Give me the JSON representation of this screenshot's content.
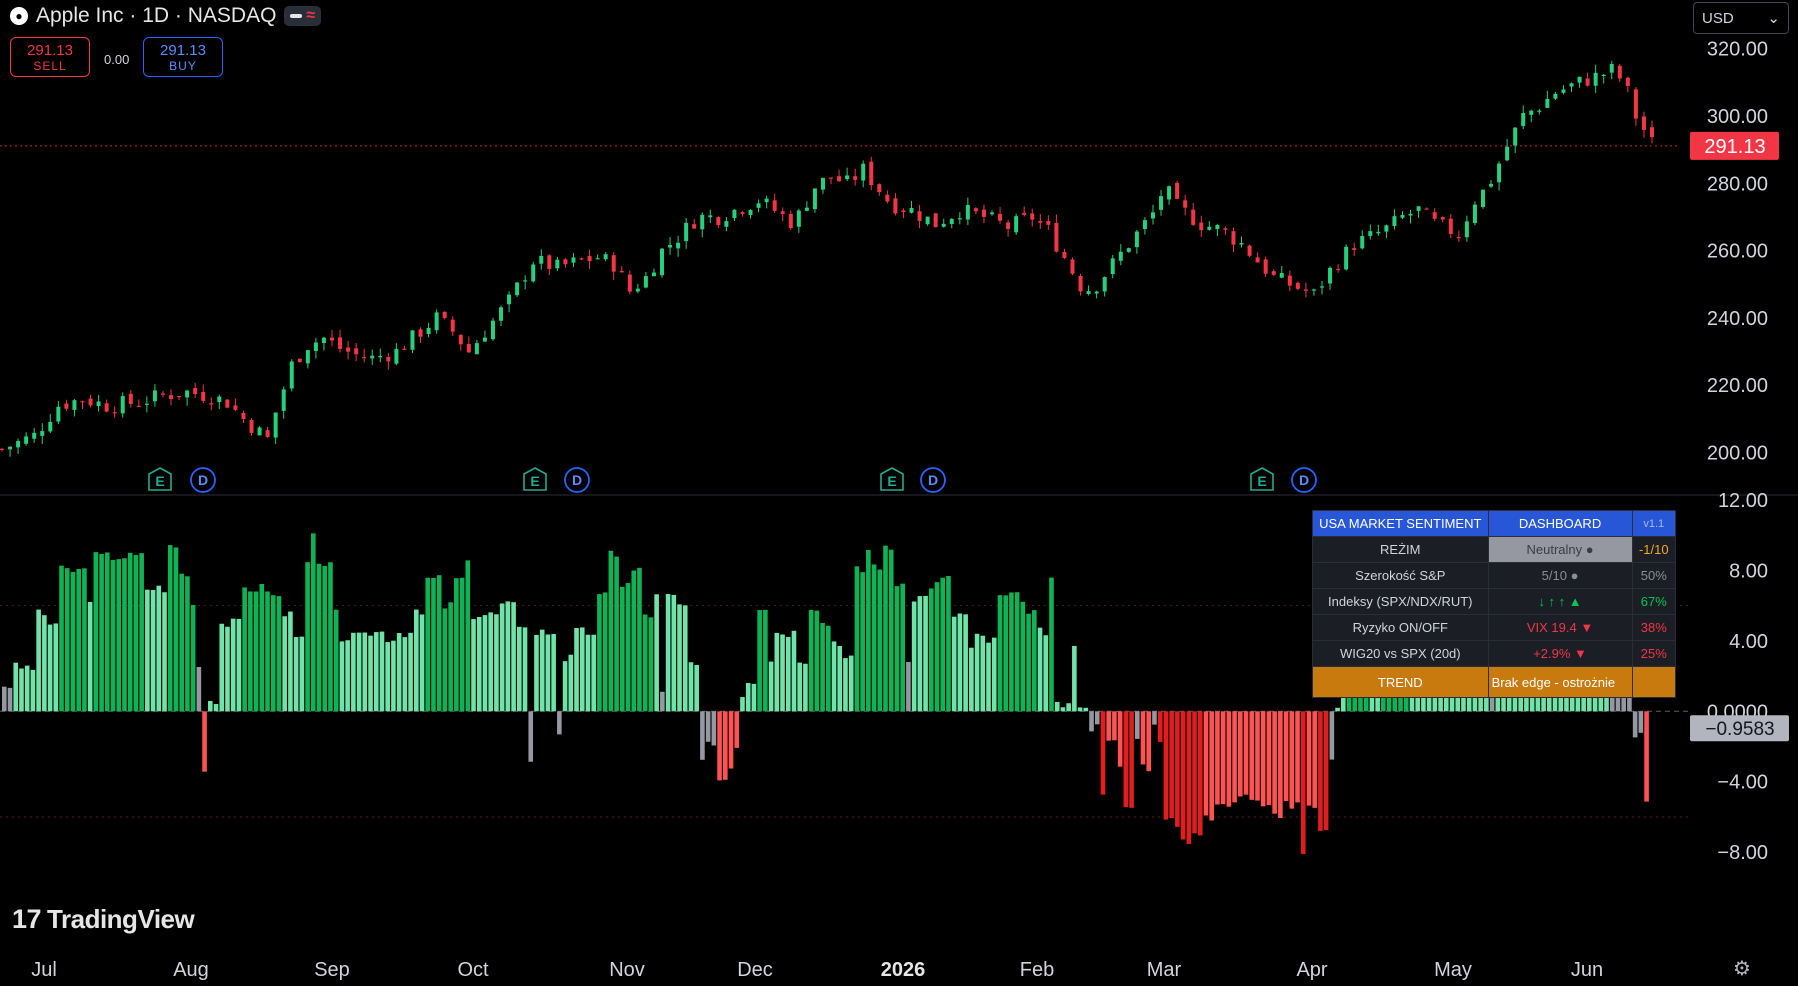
{
  "header": {
    "symbol_title": "Apple Inc · 1D · NASDAQ",
    "apple_logo": "apple-logo-icon",
    "sell_price": "291.13",
    "sell_label": "SELL",
    "spread": "0.00",
    "buy_price": "291.13",
    "buy_label": "BUY",
    "currency": "USD"
  },
  "brand": {
    "logo_mark": "17",
    "name": "TradingView"
  },
  "colors": {
    "up": "#22ab94",
    "upCandle": "#26d07c",
    "down": "#f23645",
    "histDarkGreen": "#0fb356",
    "histLightGreen": "#6fe3a8",
    "histRed": "#ff5252",
    "histDarkRed": "#e11d1d",
    "histGray": "#9598a1"
  },
  "chart_data": [
    {
      "type": "candlestick",
      "title": "Apple Inc · 1D · NASDAQ",
      "x_ticks": [
        "Jul",
        "Aug",
        "Sep",
        "Oct",
        "Nov",
        "Dec",
        "2026",
        "Feb",
        "Mar",
        "Apr",
        "May",
        "Jun"
      ],
      "y_ticks": [
        "320.00",
        "300.00",
        "280.00",
        "260.00",
        "240.00",
        "220.00",
        "200.00"
      ],
      "ylim": [
        196,
        322
      ],
      "last_price": "291.13",
      "close_path": [
        [
          0,
          201
        ],
        [
          20,
          205
        ],
        [
          35,
          214
        ],
        [
          50,
          216
        ],
        [
          65,
          214
        ],
        [
          85,
          215
        ],
        [
          100,
          217
        ],
        [
          115,
          218
        ],
        [
          128,
          217
        ],
        [
          140,
          215
        ],
        [
          150,
          210
        ],
        [
          165,
          204
        ],
        [
          170,
          212
        ],
        [
          180,
          226
        ],
        [
          190,
          232
        ],
        [
          200,
          234
        ],
        [
          210,
          231
        ],
        [
          220,
          229
        ],
        [
          230,
          228
        ],
        [
          245,
          230
        ],
        [
          260,
          236
        ],
        [
          270,
          240
        ],
        [
          280,
          236
        ],
        [
          290,
          230
        ],
        [
          300,
          236
        ],
        [
          315,
          245
        ],
        [
          330,
          257
        ],
        [
          345,
          255
        ],
        [
          360,
          257
        ],
        [
          370,
          258
        ],
        [
          380,
          256
        ],
        [
          390,
          248
        ],
        [
          400,
          252
        ],
        [
          410,
          260
        ],
        [
          420,
          264
        ],
        [
          432,
          270
        ],
        [
          445,
          270
        ],
        [
          455,
          272
        ],
        [
          470,
          275
        ],
        [
          480,
          272
        ],
        [
          492,
          268
        ],
        [
          505,
          279
        ],
        [
          515,
          282
        ],
        [
          525,
          280
        ],
        [
          535,
          284
        ],
        [
          542,
          280
        ],
        [
          552,
          274
        ],
        [
          565,
          272
        ],
        [
          580,
          268
        ],
        [
          595,
          272
        ],
        [
          610,
          270
        ],
        [
          625,
          267
        ],
        [
          640,
          270
        ],
        [
          650,
          266
        ],
        [
          660,
          258
        ],
        [
          672,
          248
        ],
        [
          680,
          250
        ],
        [
          690,
          256
        ],
        [
          700,
          262
        ],
        [
          715,
          271
        ],
        [
          722,
          279
        ],
        [
          730,
          273
        ],
        [
          745,
          268
        ],
        [
          758,
          266
        ],
        [
          770,
          262
        ],
        [
          780,
          257
        ],
        [
          790,
          252
        ],
        [
          805,
          249
        ],
        [
          815,
          247
        ],
        [
          825,
          254
        ],
        [
          840,
          262
        ],
        [
          850,
          264
        ],
        [
          862,
          267
        ],
        [
          870,
          270
        ],
        [
          880,
          272
        ],
        [
          890,
          268
        ],
        [
          905,
          265
        ],
        [
          915,
          275
        ],
        [
          923,
          279
        ],
        [
          935,
          291
        ],
        [
          945,
          300
        ],
        [
          955,
          303
        ],
        [
          965,
          307
        ],
        [
          980,
          310
        ],
        [
          992,
          312
        ],
        [
          1002,
          314
        ],
        [
          1010,
          307
        ],
        [
          1015,
          300
        ],
        [
          1020,
          296
        ],
        [
          1025,
          292
        ]
      ],
      "markers": [
        {
          "label": "E",
          "x": 160,
          "kind": "earnings"
        },
        {
          "label": "D",
          "x": 203,
          "kind": "dividend"
        },
        {
          "label": "E",
          "x": 535,
          "kind": "earnings"
        },
        {
          "label": "D",
          "x": 577,
          "kind": "dividend"
        },
        {
          "label": "E",
          "x": 892,
          "kind": "earnings"
        },
        {
          "label": "D",
          "x": 933,
          "kind": "dividend"
        },
        {
          "label": "E",
          "x": 1262,
          "kind": "earnings"
        },
        {
          "label": "D",
          "x": 1304,
          "kind": "dividend"
        }
      ]
    },
    {
      "type": "bar",
      "title": "USA Market Sentiment histogram",
      "y_ticks": [
        "12.00",
        "8.00",
        "4.00",
        "0.0000",
        "−4.00",
        "−8.00"
      ],
      "ylim": [
        -11,
        12
      ],
      "last_value": "−0.9583",
      "segments": [
        [
          0,
          1.5,
          "g"
        ],
        [
          8,
          2.5,
          "L"
        ],
        [
          26,
          5.5,
          "L"
        ],
        [
          40,
          5,
          "L"
        ],
        [
          48,
          8,
          "D"
        ],
        [
          72,
          6.5,
          "L"
        ],
        [
          80,
          8.8,
          "D"
        ],
        [
          125,
          7,
          "L"
        ],
        [
          143,
          9.3,
          "D"
        ],
        [
          151,
          7.8,
          "D"
        ],
        [
          163,
          6,
          "D"
        ],
        [
          167,
          2.8,
          "g"
        ],
        [
          173,
          -3.5,
          "R"
        ],
        [
          178,
          0.7,
          "L"
        ],
        [
          186,
          5,
          "L"
        ],
        [
          210,
          7,
          "D"
        ],
        [
          235,
          6.5,
          "D"
        ],
        [
          244,
          5.5,
          "L"
        ],
        [
          252,
          4.5,
          "L"
        ],
        [
          261,
          8.2,
          "D"
        ],
        [
          266,
          10,
          "D"
        ],
        [
          271,
          8.2,
          "D"
        ],
        [
          290,
          5.5,
          "D"
        ],
        [
          295,
          4.2,
          "L"
        ],
        [
          316,
          4.5,
          "L"
        ],
        [
          335,
          4.2,
          "L"
        ],
        [
          345,
          4.5,
          "L"
        ],
        [
          360,
          5.5,
          "L"
        ],
        [
          370,
          7.5,
          "D"
        ],
        [
          382,
          6,
          "D"
        ],
        [
          393,
          7.5,
          "D"
        ],
        [
          402,
          8.3,
          "D"
        ],
        [
          409,
          5.5,
          "L"
        ],
        [
          433,
          6,
          "L"
        ],
        [
          449,
          5,
          "L"
        ],
        [
          457,
          -2.8,
          "g"
        ],
        [
          463,
          4.5,
          "L"
        ],
        [
          482,
          -1.5,
          "g"
        ],
        [
          486,
          3,
          "L"
        ],
        [
          500,
          4.5,
          "L"
        ],
        [
          520,
          6.5,
          "D"
        ],
        [
          530,
          9,
          "D"
        ],
        [
          537,
          7.2,
          "D"
        ],
        [
          547,
          8,
          "D"
        ],
        [
          560,
          5.5,
          "D"
        ],
        [
          566,
          6.5,
          "L"
        ],
        [
          572,
          1,
          "g"
        ],
        [
          577,
          6.5,
          "L"
        ],
        [
          587,
          6,
          "L"
        ],
        [
          592,
          6,
          "L"
        ],
        [
          598,
          2.5,
          "L"
        ],
        [
          607,
          -2.5,
          "g"
        ],
        [
          612,
          -2,
          "g"
        ],
        [
          622,
          -4,
          "R"
        ],
        [
          632,
          -3.5,
          "R"
        ],
        [
          640,
          -2.2,
          "R"
        ],
        [
          645,
          1,
          "L"
        ],
        [
          650,
          1.8,
          "L"
        ],
        [
          658,
          6,
          "D"
        ],
        [
          668,
          3,
          "L"
        ],
        [
          675,
          4.5,
          "L"
        ],
        [
          695,
          3,
          "L"
        ],
        [
          705,
          6,
          "D"
        ],
        [
          715,
          5,
          "D"
        ],
        [
          725,
          4,
          "L"
        ],
        [
          735,
          3,
          "L"
        ],
        [
          745,
          8,
          "D"
        ],
        [
          752,
          9.2,
          "D"
        ],
        [
          760,
          8.3,
          "D"
        ],
        [
          770,
          9.2,
          "D"
        ],
        [
          780,
          7.3,
          "D"
        ],
        [
          788,
          2.5,
          "g"
        ],
        [
          793,
          6.5,
          "L"
        ],
        [
          810,
          7.2,
          "D"
        ],
        [
          820,
          7.5,
          "D"
        ],
        [
          830,
          5.5,
          "L"
        ],
        [
          842,
          3.5,
          "L"
        ],
        [
          850,
          4.2,
          "L"
        ],
        [
          858,
          4,
          "L"
        ],
        [
          866,
          6.5,
          "D"
        ],
        [
          880,
          6.5,
          "D"
        ],
        [
          895,
          5.5,
          "D"
        ],
        [
          905,
          4.5,
          "L"
        ],
        [
          912,
          7.3,
          "D"
        ],
        [
          917,
          0.4,
          "L"
        ],
        [
          933,
          3.5,
          "L"
        ],
        [
          938,
          0.5,
          "L"
        ],
        [
          943,
          0.2,
          "L"
        ],
        [
          948,
          -1,
          "g"
        ],
        [
          953,
          -1,
          "g"
        ],
        [
          958,
          -5,
          "X"
        ],
        [
          965,
          -1.5,
          "R"
        ],
        [
          972,
          -3,
          "R"
        ],
        [
          980,
          -5.5,
          "X"
        ],
        [
          986,
          -3.5,
          "R"
        ],
        [
          990,
          -1.5,
          "g"
        ],
        [
          995,
          -3.3,
          "R"
        ],
        [
          1003,
          -1,
          "g"
        ],
        [
          1010,
          -2,
          "X"
        ],
        [
          1015,
          -6,
          "X"
        ],
        [
          1022,
          -6.3,
          "X"
        ],
        [
          1030,
          -7.5,
          "X"
        ],
        [
          1040,
          -7.2,
          "X"
        ],
        [
          1050,
          -6,
          "R"
        ],
        [
          1058,
          -5.3,
          "R"
        ],
        [
          1068,
          -5.3,
          "R"
        ],
        [
          1078,
          -5,
          "R"
        ],
        [
          1088,
          -5.3,
          "R"
        ],
        [
          1097,
          -5.5,
          "R"
        ],
        [
          1108,
          -5.8,
          "R"
        ],
        [
          1118,
          -5.3,
          "R"
        ],
        [
          1128,
          -5.3,
          "R"
        ],
        [
          1133,
          -8.2,
          "X"
        ],
        [
          1140,
          -5.3,
          "R"
        ],
        [
          1150,
          -7,
          "X"
        ],
        [
          1156,
          -2.5,
          "g"
        ],
        [
          1162,
          0.2,
          "L"
        ],
        [
          1167,
          2,
          "L"
        ],
        [
          1172,
          6,
          "D"
        ],
        [
          1180,
          7,
          "D"
        ],
        [
          1192,
          4.5,
          "L"
        ],
        [
          1205,
          6.5,
          "D"
        ],
        [
          1230,
          4.5,
          "L"
        ],
        [
          1262,
          4.5,
          "L"
        ],
        [
          1290,
          3.5,
          "L"
        ],
        [
          1296,
          2,
          "g"
        ],
        [
          1302,
          5.5,
          "L"
        ],
        [
          1328,
          4.5,
          "L"
        ],
        [
          1398,
          2.5,
          "L"
        ],
        [
          1404,
          3,
          "g"
        ],
        [
          1410,
          2.5,
          "g"
        ],
        [
          1416,
          2,
          "g"
        ],
        [
          1421,
          0,
          "L"
        ],
        [
          1425,
          -1.5,
          "g"
        ],
        [
          1431,
          -5,
          "R"
        ],
        [
          1437,
          -1,
          "g"
        ]
      ]
    }
  ],
  "dashboard": {
    "title": "USA MARKET SENTIMENT",
    "subtitle": "DASHBOARD",
    "version": "v1.1",
    "rows": [
      {
        "label": "REŻIM",
        "value": "Neutralny ●",
        "score": "-1/10",
        "score_color": "yellow",
        "value_style": "neutral"
      },
      {
        "label": "Szerokość S&P",
        "value": "5/10 ●",
        "score": "50%",
        "score_color": "gray",
        "value_color": "gray"
      },
      {
        "label": "Indeksy (SPX/NDX/RUT)",
        "value": "↓ ↑ ↑ ▲",
        "score": "67%",
        "score_color": "green",
        "value_color": "green"
      },
      {
        "label": "Ryzyko ON/OFF",
        "value": "VIX 19.4 ▼",
        "score": "38%",
        "score_color": "red",
        "value_color": "red"
      },
      {
        "label": "WIG20 vs SPX (20d)",
        "value": "+2.9% ▼",
        "score": "25%",
        "score_color": "red",
        "value_color": "red"
      }
    ],
    "trend_label": "TREND",
    "trend_value": "Brak edge - ostrożnie"
  }
}
